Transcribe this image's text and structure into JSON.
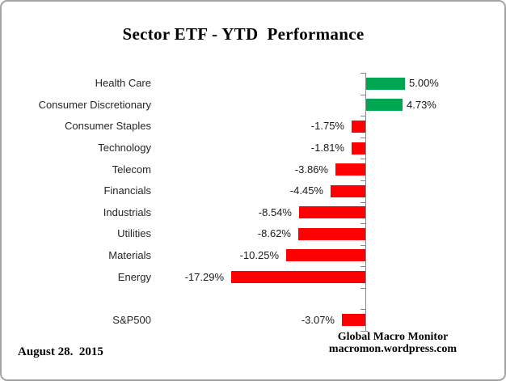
{
  "chart_data": {
    "type": "bar",
    "orientation": "horizontal",
    "title": "Sector ETF - YTD  Performance",
    "value_format": "percent",
    "xlim": [
      -20,
      7.5
    ],
    "grid": false,
    "legend": false,
    "colors": {
      "positive": "#00A651",
      "negative": "#FF0000",
      "axis": "#8a8a8a"
    },
    "rows": [
      {
        "category": "Health Care",
        "value": 5.0,
        "display": "5.00%"
      },
      {
        "category": "Consumer Discretionary",
        "value": 4.73,
        "display": "4.73%"
      },
      {
        "category": "Consumer Staples",
        "value": -1.75,
        "display": "-1.75%"
      },
      {
        "category": "Technology",
        "value": -1.81,
        "display": "-1.81%"
      },
      {
        "category": "Telecom",
        "value": -3.86,
        "display": "-3.86%"
      },
      {
        "category": "Financials",
        "value": -4.45,
        "display": "-4.45%"
      },
      {
        "category": "Industrials",
        "value": -8.54,
        "display": "-8.54%"
      },
      {
        "category": "Utilities",
        "value": -8.62,
        "display": "-8.62%"
      },
      {
        "category": "Materials",
        "value": -10.25,
        "display": "-10.25%"
      },
      {
        "category": "Energy",
        "value": -17.29,
        "display": "-17.29%"
      },
      {
        "category": "",
        "value": null,
        "display": ""
      },
      {
        "category": "S&P500",
        "value": -3.07,
        "display": "-3.07%"
      }
    ]
  },
  "footer": {
    "date": "August 28.  2015",
    "source_line1": "Global Macro Monitor",
    "source_line2": "macromon.wordpress.com"
  }
}
